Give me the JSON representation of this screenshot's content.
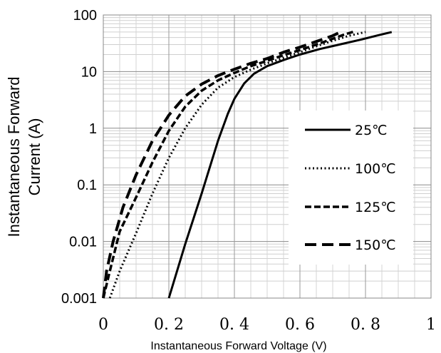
{
  "chart_data": {
    "type": "line",
    "title": "",
    "xlabel": "Instantaneous Forward Voltage (V)",
    "ylabel_line1": "Instantaneous Forward",
    "ylabel_line2": "Current (A)",
    "xlim": [
      0,
      1
    ],
    "ylim": [
      0.001,
      100
    ],
    "yscale": "log",
    "grid": true,
    "legend_position": "right-center",
    "x_ticks": [
      {
        "value": 0,
        "label": "0"
      },
      {
        "value": 0.2,
        "label": "0. 2"
      },
      {
        "value": 0.4,
        "label": "0. 4"
      },
      {
        "value": 0.6,
        "label": "0. 6"
      },
      {
        "value": 0.8,
        "label": "0. 8"
      },
      {
        "value": 1,
        "label": "1"
      }
    ],
    "y_ticks": [
      {
        "value": 100,
        "label": "100"
      },
      {
        "value": 10,
        "label": "10"
      },
      {
        "value": 1,
        "label": "1"
      },
      {
        "value": 0.1,
        "label": "0.1"
      },
      {
        "value": 0.01,
        "label": "0.01"
      },
      {
        "value": 0.001,
        "label": "0.001"
      }
    ],
    "series": [
      {
        "name": "25℃",
        "style": "solid",
        "x": [
          0.2,
          0.25,
          0.3,
          0.35,
          0.38,
          0.4,
          0.43,
          0.46,
          0.5,
          0.55,
          0.6,
          0.66,
          0.72,
          0.78,
          0.84,
          0.88
        ],
        "y": [
          0.001,
          0.009,
          0.07,
          0.6,
          1.8,
          3.3,
          6.2,
          9.2,
          12.5,
          16,
          20,
          25,
          30,
          36,
          44,
          50
        ]
      },
      {
        "name": "100℃",
        "style": "dotted",
        "x": [
          0.02,
          0.05,
          0.1,
          0.15,
          0.2,
          0.25,
          0.3,
          0.35,
          0.4,
          0.45,
          0.5,
          0.55,
          0.6,
          0.65,
          0.7,
          0.75,
          0.8
        ],
        "y": [
          0.001,
          0.003,
          0.014,
          0.07,
          0.3,
          1.0,
          2.6,
          5.2,
          8.0,
          10.8,
          14,
          17.5,
          22,
          28,
          35,
          43,
          50
        ]
      },
      {
        "name": "125℃",
        "style": "short-dash",
        "x": [
          0.0,
          0.02,
          0.05,
          0.1,
          0.15,
          0.2,
          0.25,
          0.3,
          0.35,
          0.4,
          0.45,
          0.5,
          0.55,
          0.6,
          0.65,
          0.7,
          0.73,
          0.77
        ],
        "y": [
          0.001,
          0.003,
          0.015,
          0.06,
          0.25,
          0.9,
          2.4,
          4.6,
          7.0,
          9.5,
          12.5,
          15.5,
          19.5,
          24,
          30,
          38,
          44,
          52
        ]
      },
      {
        "name": "150℃",
        "style": "long-dash",
        "x": [
          0.0,
          0.01,
          0.03,
          0.06,
          0.1,
          0.15,
          0.2,
          0.25,
          0.3,
          0.35,
          0.4,
          0.45,
          0.5,
          0.55,
          0.6,
          0.65,
          0.7,
          0.73
        ],
        "y": [
          0.001,
          0.003,
          0.01,
          0.04,
          0.15,
          0.6,
          1.7,
          3.7,
          6.0,
          8.5,
          11,
          14,
          17,
          22,
          27,
          34,
          43,
          52
        ]
      }
    ]
  }
}
